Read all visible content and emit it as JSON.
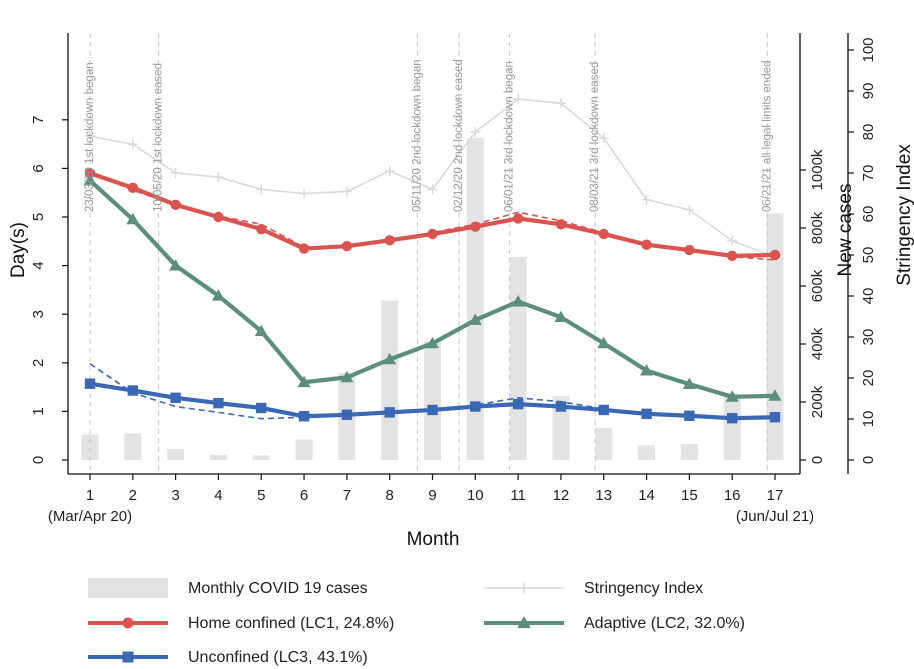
{
  "chart_data": {
    "type": "line",
    "x": [
      1,
      2,
      3,
      4,
      5,
      6,
      7,
      8,
      9,
      10,
      11,
      12,
      13,
      14,
      15,
      16,
      17
    ],
    "xlabel": "Month",
    "x_ticks": [
      "1",
      "2",
      "3",
      "4",
      "5",
      "6",
      "7",
      "8",
      "9",
      "10",
      "11",
      "12",
      "13",
      "14",
      "15",
      "16",
      "17"
    ],
    "x_sublabels": [
      {
        "x": 1,
        "text": "(Mar/Apr 20)"
      },
      {
        "x": 17,
        "text": "(Jun/Jul 21)"
      }
    ],
    "ylabel": "Day(s)",
    "ylim": [
      -0.2,
      8.3
    ],
    "y_ticks": [
      "0",
      "1",
      "2",
      "3",
      "4",
      "5",
      "6",
      "7"
    ],
    "y2label": "New cases",
    "y2_ticks": [
      {
        "value": 0,
        "label": "0"
      },
      {
        "value": 200000,
        "label": "200k"
      },
      {
        "value": 400000,
        "label": "400k"
      },
      {
        "value": 600000,
        "label": "600k"
      },
      {
        "value": 800000,
        "label": "800k"
      },
      {
        "value": 1000000,
        "label": "1000k"
      }
    ],
    "y3label": "Stringency Index",
    "y3_ticks": [
      "0",
      "10",
      "20",
      "30",
      "40",
      "50",
      "60",
      "70",
      "80",
      "90",
      "100"
    ],
    "series": [
      {
        "name": "Monthly COVID 19 cases",
        "kind": "bar",
        "axis": "cases",
        "color": "#e3e3e3",
        "values": [
          88000,
          92000,
          38000,
          18000,
          16000,
          70000,
          300000,
          550000,
          410000,
          1110000,
          700000,
          220000,
          110000,
          50000,
          55000,
          230000,
          850000
        ]
      },
      {
        "name": "Stringency Index",
        "kind": "line",
        "axis": "stringency",
        "color": "#d9d9d9",
        "values": [
          79,
          77,
          70,
          69,
          66,
          65,
          65.5,
          70.5,
          66,
          80,
          88,
          87,
          78.5,
          63.5,
          61,
          53.5,
          49.5
        ]
      },
      {
        "name": "Home confined (LC1, 24.8%)",
        "kind": "line",
        "axis": "days",
        "color": "#d9534f",
        "marker": "circle",
        "values": [
          5.9,
          5.6,
          5.25,
          5.0,
          4.75,
          4.35,
          4.4,
          4.52,
          4.65,
          4.8,
          4.97,
          4.85,
          4.65,
          4.43,
          4.32,
          4.2,
          4.22
        ],
        "fit": [
          5.92,
          5.55,
          5.25,
          5.02,
          4.85,
          4.38,
          4.38,
          4.5,
          4.68,
          4.85,
          5.1,
          4.92,
          4.68,
          4.45,
          4.3,
          4.18,
          4.12
        ]
      },
      {
        "name": "Adaptive (LC2, 32.0%)",
        "kind": "line",
        "axis": "days",
        "color": "#5b8e7d",
        "marker": "triangle",
        "values": [
          5.75,
          4.95,
          4.0,
          3.38,
          2.65,
          1.6,
          1.7,
          2.07,
          2.4,
          2.88,
          3.26,
          2.94,
          2.4,
          1.84,
          1.56,
          1.3,
          1.32
        ],
        "fit": []
      },
      {
        "name": "Unconfined (LC3, 43.1%)",
        "kind": "line",
        "axis": "days",
        "color": "#3b68b5",
        "marker": "square",
        "values": [
          1.57,
          1.43,
          1.28,
          1.17,
          1.07,
          0.9,
          0.93,
          0.98,
          1.03,
          1.1,
          1.15,
          1.1,
          1.03,
          0.95,
          0.91,
          0.86,
          0.88
        ],
        "fit": [
          1.98,
          1.38,
          1.1,
          0.98,
          0.85,
          0.88,
          0.93,
          1.0,
          1.05,
          1.13,
          1.28,
          1.2,
          1.05,
          0.95,
          0.9,
          0.88,
          0.88
        ]
      }
    ],
    "events": [
      {
        "x": 1,
        "label": "23/03/20 1st lockdown began"
      },
      {
        "x": 2.6,
        "label": "10/05/20 1st lockdown eased"
      },
      {
        "x": 8.65,
        "label": "05/11/20 2nd lockdown began"
      },
      {
        "x": 9.62,
        "label": "02/12/20 2nd lockdown eased"
      },
      {
        "x": 10.8,
        "label": "06/01/21 3rd lockdown began"
      },
      {
        "x": 12.8,
        "label": "08/03/21 3rd lockdown eased"
      },
      {
        "x": 16.82,
        "label": "06/21/21 all legal limits ended"
      }
    ],
    "grid": false,
    "legend_position": "bottom"
  }
}
